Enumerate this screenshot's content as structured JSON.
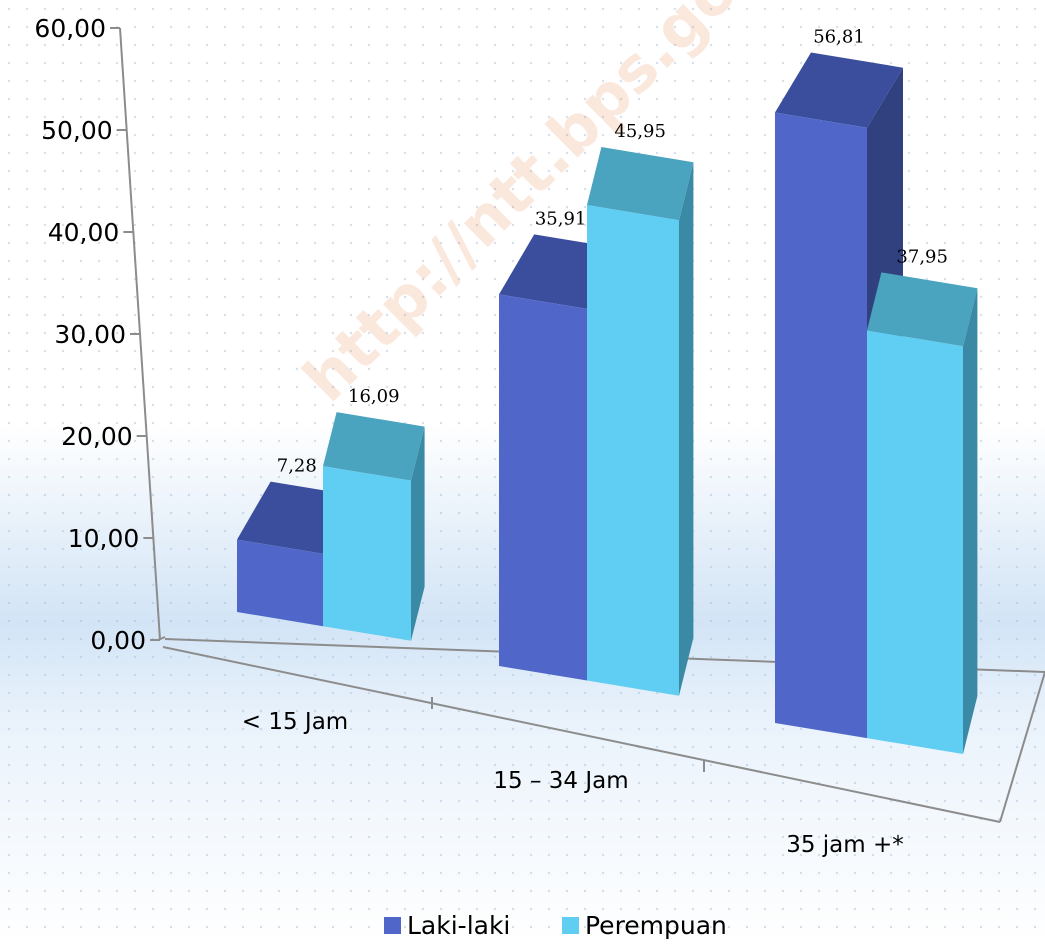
{
  "chart_data": {
    "type": "bar",
    "categories": [
      "< 15 Jam",
      "15 – 34 Jam",
      "35 jam +*"
    ],
    "series": [
      {
        "name": "Laki-laki",
        "values": [
          7.28,
          35.91,
          56.81
        ],
        "value_labels": [
          "7,28",
          "35,91",
          "56,81"
        ]
      },
      {
        "name": "Perempuan",
        "values": [
          16.09,
          45.95,
          37.95
        ],
        "value_labels": [
          "16,09",
          "45,95",
          "37,95"
        ]
      }
    ],
    "y_tick_labels": [
      "0,00",
      "10,00",
      "20,00",
      "30,00",
      "40,00",
      "50,00",
      "60,00"
    ],
    "ylim": [
      0,
      60
    ],
    "title": "",
    "xlabel": "",
    "ylabel": "",
    "style": "3d-clustered-column",
    "legend_position": "bottom",
    "grid": false
  },
  "watermark": "http://ntt.bps.go.id",
  "colors": {
    "laki_front": "#5067c9",
    "laki_top": "#3b4e9e",
    "laki_side": "#31407f",
    "perempuan_front": "#60cdf2",
    "perempuan_top": "#4aa3bf",
    "perempuan_side": "#3a8aa5",
    "axis": "#8c8c8c"
  }
}
